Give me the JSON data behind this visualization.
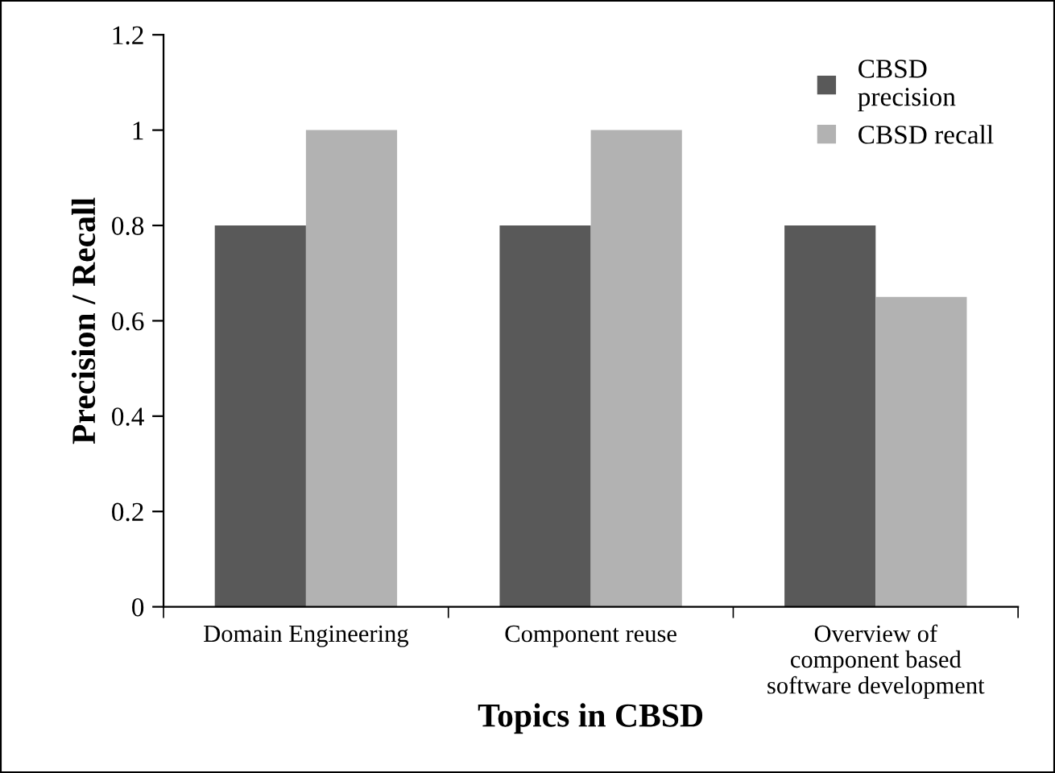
{
  "chart_data": {
    "type": "bar",
    "xlabel": "Topics in CBSD",
    "ylabel": "Precision / Recall",
    "categories": [
      "Domain Engineering",
      "Component reuse",
      "Overview of\ncomponent based\nsoftware development"
    ],
    "series": [
      {
        "name": "CBSD\nprecision",
        "color": "#595959",
        "values": [
          0.8,
          0.8,
          0.8
        ]
      },
      {
        "name": "CBSD recall",
        "color": "#b2b2b2",
        "values": [
          1.0,
          1.0,
          0.65
        ]
      }
    ],
    "ylim": [
      0,
      1.2
    ],
    "yticks": [
      0,
      0.2,
      0.4,
      0.6,
      0.8,
      {
        "value": 1,
        "label": "1"
      },
      1.2
    ],
    "grid": false,
    "legend": "top right"
  }
}
